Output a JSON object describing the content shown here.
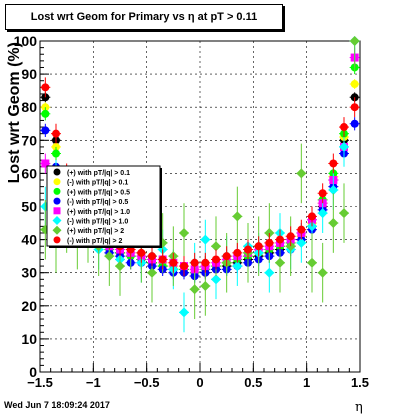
{
  "title": "Lost wrt Geom for Primary vs   η at pT > 0.11",
  "footer": "Wed Jun  7 18:09:24 2017",
  "chart_data": {
    "type": "scatter",
    "title": "Lost wrt Geom for Primary vs   η at pT > 0.11",
    "xlabel": "η",
    "ylabel": "Lost wrt Geom (%)",
    "xlim": [
      -1.5,
      1.5
    ],
    "ylim": [
      0,
      100
    ],
    "x_ticks": [
      "−1.5",
      "−1",
      "−0.5",
      "0",
      "0.5",
      "1",
      "1.5"
    ],
    "y_ticks": [
      "0",
      "10",
      "20",
      "30",
      "40",
      "50",
      "60",
      "70",
      "80",
      "90",
      "100"
    ],
    "grid": true,
    "legend": {
      "placement": "left-center",
      "entries": [
        {
          "label": "(+) with pT/|q| > 0.1",
          "color": "#000000",
          "marker": "circle"
        },
        {
          "label": "(-) with pT/|q| > 0.1",
          "color": "#ffff00",
          "marker": "circle"
        },
        {
          "label": "(+) with pT/|q| > 0.5",
          "color": "#00ff00",
          "marker": "circle"
        },
        {
          "label": "(-) with pT/|q| > 0.5",
          "color": "#0000ff",
          "marker": "circle"
        },
        {
          "label": "(+) with pT/|q| > 1.0",
          "color": "#ff00ff",
          "marker": "square"
        },
        {
          "label": "(-) with pT/|q| > 1.0",
          "color": "#00ffff",
          "marker": "diamond"
        },
        {
          "label": "(+) with pT/|q| > 2",
          "color": "#66cc33",
          "marker": "diamond"
        },
        {
          "label": "(-) with pT/|q| > 2",
          "color": "#ff0000",
          "marker": "circle"
        }
      ]
    },
    "series": [
      {
        "color": "#000000",
        "marker": "circle",
        "err": 1.5,
        "x": [
          -1.45,
          -1.35,
          -1.25,
          -1.15,
          -1.05,
          -0.95,
          -0.85,
          -0.75,
          -0.65,
          -0.55,
          -0.45,
          -0.35,
          -0.25,
          -0.15,
          -0.05,
          0.05,
          0.15,
          0.25,
          0.35,
          0.45,
          0.55,
          0.65,
          0.75,
          0.85,
          0.95,
          1.05,
          1.15,
          1.25,
          1.35,
          1.45
        ],
        "y": [
          83,
          70,
          58,
          50,
          44,
          40,
          38,
          36,
          35,
          34,
          33,
          32,
          31,
          30,
          29,
          30,
          31,
          32,
          33,
          34,
          35,
          36,
          37,
          38,
          40,
          44,
          50,
          58,
          70,
          83
        ]
      },
      {
        "color": "#ffff00",
        "marker": "circle",
        "err": 1.5,
        "x": [
          -1.45,
          -1.35,
          -1.25,
          -1.15,
          -1.05,
          -0.95,
          -0.85,
          -0.75,
          -0.65,
          -0.55,
          -0.45,
          -0.35,
          -0.25,
          -0.15,
          -0.05,
          0.05,
          0.15,
          0.25,
          0.35,
          0.45,
          0.55,
          0.65,
          0.75,
          0.85,
          0.95,
          1.05,
          1.15,
          1.25,
          1.35,
          1.45
        ],
        "y": [
          80,
          68,
          57,
          49,
          43,
          40,
          38,
          37,
          36,
          35,
          34,
          33,
          32,
          31,
          31,
          31,
          32,
          33,
          34,
          35,
          36,
          37,
          38,
          39,
          41,
          45,
          51,
          59,
          71,
          87
        ]
      },
      {
        "color": "#00ff00",
        "marker": "circle",
        "err": 2,
        "x": [
          -1.45,
          -1.35,
          -1.25,
          -1.15,
          -1.05,
          -0.95,
          -0.85,
          -0.75,
          -0.65,
          -0.55,
          -0.45,
          -0.35,
          -0.25,
          -0.15,
          -0.05,
          0.05,
          0.15,
          0.25,
          0.35,
          0.45,
          0.55,
          0.65,
          0.75,
          0.85,
          0.95,
          1.05,
          1.15,
          1.25,
          1.35,
          1.45
        ],
        "y": [
          78,
          66,
          56,
          48,
          43,
          39,
          37,
          36,
          35,
          34,
          33,
          32,
          31,
          31,
          30,
          31,
          32,
          33,
          34,
          35,
          36,
          37,
          38,
          39,
          42,
          46,
          52,
          60,
          72,
          92
        ]
      },
      {
        "color": "#0000ff",
        "marker": "circle",
        "err": 2,
        "x": [
          -1.45,
          -1.35,
          -1.25,
          -1.15,
          -1.05,
          -0.95,
          -0.85,
          -0.75,
          -0.65,
          -0.55,
          -0.45,
          -0.35,
          -0.25,
          -0.15,
          -0.05,
          0.05,
          0.15,
          0.25,
          0.35,
          0.45,
          0.55,
          0.65,
          0.75,
          0.85,
          0.95,
          1.05,
          1.15,
          1.25,
          1.35,
          1.45
        ],
        "y": [
          73,
          62,
          53,
          46,
          41,
          38,
          36,
          35,
          33,
          33,
          32,
          31,
          30,
          30,
          29,
          30,
          31,
          31,
          32,
          33,
          34,
          35,
          36,
          37,
          40,
          43,
          49,
          56,
          66,
          75
        ]
      },
      {
        "color": "#ff00ff",
        "marker": "square",
        "err": 3,
        "x": [
          -1.45,
          -1.35,
          -1.25,
          -1.15,
          -1.05,
          -0.95,
          -0.85,
          -0.75,
          -0.65,
          -0.55,
          -0.45,
          -0.35,
          -0.25,
          -0.15,
          -0.05,
          0.05,
          0.15,
          0.25,
          0.35,
          0.45,
          0.55,
          0.65,
          0.75,
          0.85,
          0.95,
          1.05,
          1.15,
          1.25,
          1.35,
          1.45
        ],
        "y": [
          63,
          57,
          52,
          47,
          43,
          40,
          38,
          37,
          36,
          35,
          34,
          34,
          33,
          32,
          31,
          32,
          33,
          34,
          35,
          36,
          37,
          38,
          39,
          40,
          42,
          46,
          51,
          58,
          68,
          95
        ]
      },
      {
        "color": "#00ffff",
        "marker": "diamond",
        "err": 6,
        "x": [
          -1.45,
          -1.35,
          -1.25,
          -1.15,
          -1.05,
          -0.95,
          -0.85,
          -0.75,
          -0.65,
          -0.55,
          -0.45,
          -0.35,
          -0.25,
          -0.15,
          -0.05,
          0.05,
          0.15,
          0.25,
          0.35,
          0.45,
          0.55,
          0.65,
          0.75,
          0.85,
          0.95,
          1.05,
          1.15,
          1.25,
          1.35,
          1.45
        ],
        "y": [
          50,
          58,
          48,
          44,
          40,
          37,
          41,
          34,
          38,
          33,
          35,
          37,
          31,
          18,
          33,
          40,
          28,
          35,
          32,
          38,
          36,
          30,
          42,
          37,
          39,
          44,
          48,
          55,
          68,
          100
        ]
      },
      {
        "color": "#66cc33",
        "marker": "diamond",
        "err": 9,
        "x": [
          -1.45,
          -1.35,
          -1.25,
          -1.15,
          -1.05,
          -0.95,
          -0.85,
          -0.75,
          -0.65,
          -0.55,
          -0.45,
          -0.35,
          -0.25,
          -0.15,
          -0.05,
          0.05,
          0.15,
          0.25,
          0.35,
          0.45,
          0.55,
          0.65,
          0.75,
          0.85,
          0.95,
          1.05,
          1.15,
          1.25,
          1.35,
          1.45
        ],
        "y": [
          43,
          39,
          45,
          40,
          42,
          38,
          35,
          32,
          40,
          36,
          30,
          39,
          35,
          42,
          25,
          26,
          38,
          33,
          47,
          36,
          38,
          42,
          33,
          38,
          60,
          33,
          30,
          45,
          48,
          100
        ]
      },
      {
        "color": "#ff0000",
        "marker": "circle",
        "err": 3,
        "x": [
          -1.45,
          -1.35,
          -1.25,
          -1.15,
          -1.05,
          -0.95,
          -0.85,
          -0.75,
          -0.65,
          -0.55,
          -0.45,
          -0.35,
          -0.25,
          -0.15,
          -0.05,
          0.05,
          0.15,
          0.25,
          0.35,
          0.45,
          0.55,
          0.65,
          0.75,
          0.85,
          0.95,
          1.05,
          1.15,
          1.25,
          1.35,
          1.45
        ],
        "y": [
          86,
          72,
          60,
          52,
          46,
          42,
          40,
          38,
          37,
          36,
          35,
          34,
          33,
          32,
          33,
          33,
          34,
          35,
          36,
          37,
          38,
          39,
          40,
          41,
          43,
          47,
          54,
          63,
          74,
          80
        ]
      }
    ]
  }
}
